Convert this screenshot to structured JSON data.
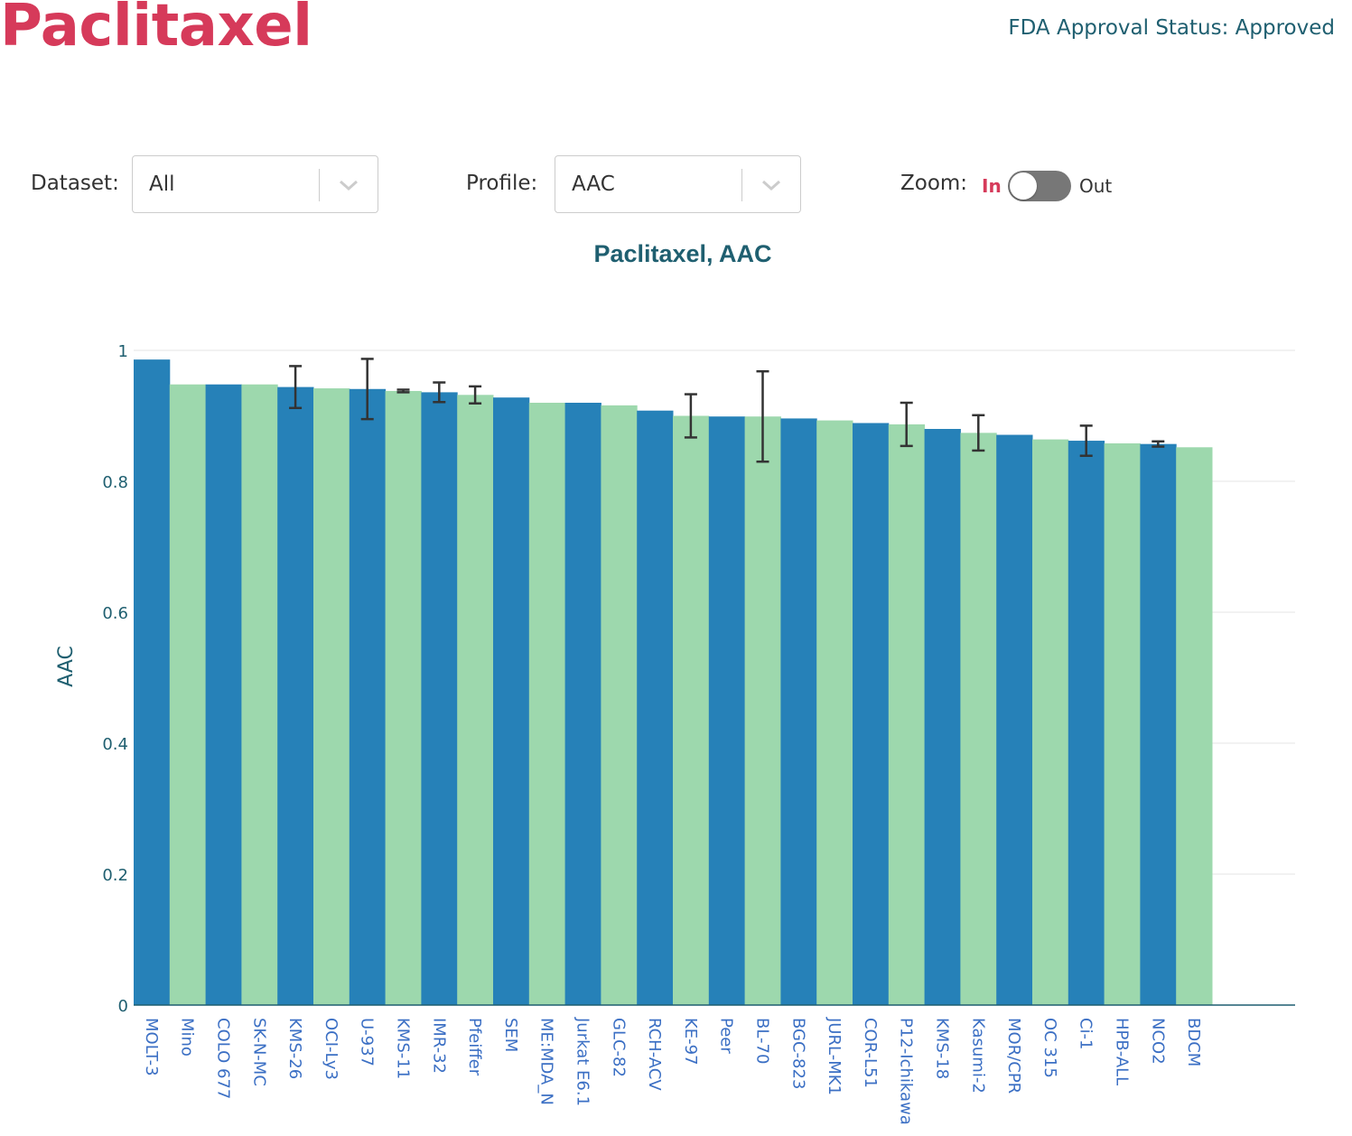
{
  "header": {
    "drug_name": "Paclitaxel",
    "fda_status": "FDA Approval Status: Approved"
  },
  "controls": {
    "dataset_label": "Dataset:",
    "dataset_value": "All",
    "profile_label": "Profile:",
    "profile_value": "AAC",
    "zoom_label": "Zoom:",
    "zoom_in": "In",
    "zoom_out": "Out"
  },
  "colors": {
    "accent": "#d63a5a",
    "bar_blue": "#2681b8",
    "bar_green": "#9dd8ad",
    "text_teal": "#1f5f70"
  },
  "chart_data": {
    "type": "bar",
    "title": "Paclitaxel, AAC",
    "xlabel": "",
    "ylabel": "AAC",
    "ylim": [
      0,
      1
    ],
    "yticks": [
      0,
      0.2,
      0.4,
      0.6,
      0.8,
      1
    ],
    "ytick_labels": [
      "0",
      "0.2",
      "0.4",
      "0.6",
      "0.8",
      "1"
    ],
    "grid": true,
    "categories": [
      "MOLT-3",
      "Mino",
      "COLO 677",
      "SK-N-MC",
      "KMS-26",
      "OCI-Ly3",
      "U-937",
      "KMS-11",
      "IMR-32",
      "Pfeiffer",
      "SEM",
      "ME:MDA_N",
      "Jurkat E6.1",
      "GLC-82",
      "RCH-ACV",
      "KE-97",
      "Peer",
      "BL-70",
      "BGC-823",
      "JURL-MK1",
      "COR-L51",
      "P12-Ichikawa",
      "KMS-18",
      "Kasumi-2",
      "MOR/CPR",
      "OC 315",
      "Ci-1",
      "HPB-ALL",
      "NCO2",
      "BDCM"
    ],
    "values": [
      0.986,
      0.948,
      0.948,
      0.948,
      0.944,
      0.942,
      0.941,
      0.938,
      0.936,
      0.932,
      0.928,
      0.92,
      0.92,
      0.916,
      0.908,
      0.9,
      0.899,
      0.899,
      0.896,
      0.893,
      0.889,
      0.887,
      0.88,
      0.874,
      0.871,
      0.864,
      0.862,
      0.858,
      0.857,
      0.852
    ],
    "error": [
      null,
      null,
      null,
      null,
      0.032,
      null,
      0.046,
      0.002,
      0.015,
      0.013,
      null,
      null,
      null,
      null,
      null,
      0.033,
      null,
      0.069,
      null,
      null,
      null,
      0.033,
      null,
      0.027,
      null,
      null,
      0.023,
      null,
      0.004,
      null
    ],
    "bar_colors": [
      "#2681b8",
      "#9dd8ad"
    ]
  }
}
